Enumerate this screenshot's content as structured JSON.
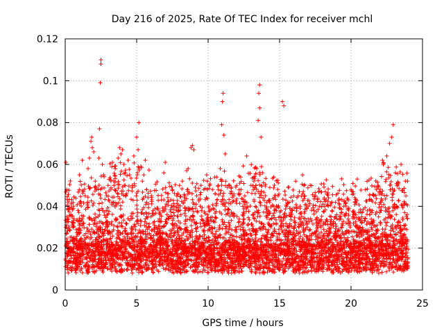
{
  "chart_data": {
    "type": "scatter",
    "title": "Day 216 of 2025, Rate Of TEC Index for receiver mchl",
    "xlabel": "GPS time / hours",
    "ylabel": "ROTI / TECUs",
    "xlim": [
      0,
      25
    ],
    "ylim": [
      0,
      0.12
    ],
    "xticks": [
      0,
      5,
      10,
      15,
      20,
      25
    ],
    "xtick_labels": [
      "0",
      "5",
      "10",
      "15",
      "20",
      "25"
    ],
    "yticks": [
      0,
      0.02,
      0.04,
      0.06,
      0.08,
      0.1,
      0.12
    ],
    "ytick_labels": [
      "0",
      "0.02",
      "0.04",
      "0.06",
      "0.08",
      "0.1",
      "0.12"
    ],
    "grid": true,
    "marker": "plus",
    "color": "#ff0000",
    "series": [
      {
        "name": "ROTI",
        "note": "Dense cloud of several thousand samples between 0.005 and 0.03 TECU/s across 0-24 h; listed points are the visible outliers/peaks",
        "points": [
          [
            0.05,
            0.061
          ],
          [
            0.1,
            0.048
          ],
          [
            0.2,
            0.042
          ],
          [
            0.4,
            0.036
          ],
          [
            0.6,
            0.034
          ],
          [
            0.9,
            0.038
          ],
          [
            1.0,
            0.055
          ],
          [
            1.2,
            0.062
          ],
          [
            1.4,
            0.045
          ],
          [
            1.6,
            0.058
          ],
          [
            1.7,
            0.063
          ],
          [
            1.8,
            0.071
          ],
          [
            1.85,
            0.073
          ],
          [
            1.9,
            0.068
          ],
          [
            2.0,
            0.066
          ],
          [
            2.1,
            0.052
          ],
          [
            2.2,
            0.048
          ],
          [
            2.35,
            0.063
          ],
          [
            2.4,
            0.077
          ],
          [
            2.45,
            0.099
          ],
          [
            2.5,
            0.108
          ],
          [
            2.5,
            0.11
          ],
          [
            2.6,
            0.06
          ],
          [
            2.7,
            0.055
          ],
          [
            2.9,
            0.045
          ],
          [
            3.0,
            0.05
          ],
          [
            3.2,
            0.052
          ],
          [
            3.3,
            0.061
          ],
          [
            3.5,
            0.058
          ],
          [
            3.7,
            0.063
          ],
          [
            3.8,
            0.068
          ],
          [
            3.9,
            0.065
          ],
          [
            4.0,
            0.067
          ],
          [
            4.1,
            0.06
          ],
          [
            4.2,
            0.056
          ],
          [
            4.4,
            0.062
          ],
          [
            4.5,
            0.055
          ],
          [
            4.7,
            0.05
          ],
          [
            4.8,
            0.064
          ],
          [
            5.0,
            0.073
          ],
          [
            5.1,
            0.067
          ],
          [
            5.15,
            0.08
          ],
          [
            5.3,
            0.059
          ],
          [
            5.4,
            0.052
          ],
          [
            5.5,
            0.055
          ],
          [
            5.6,
            0.062
          ],
          [
            5.7,
            0.048
          ],
          [
            6.0,
            0.035
          ],
          [
            6.3,
            0.03
          ],
          [
            6.6,
            0.034
          ],
          [
            6.9,
            0.056
          ],
          [
            7.0,
            0.061
          ],
          [
            7.2,
            0.046
          ],
          [
            7.5,
            0.048
          ],
          [
            7.8,
            0.045
          ],
          [
            8.0,
            0.05
          ],
          [
            8.2,
            0.052
          ],
          [
            8.5,
            0.057
          ],
          [
            8.6,
            0.058
          ],
          [
            8.8,
            0.068
          ],
          [
            8.9,
            0.069
          ],
          [
            9.0,
            0.067
          ],
          [
            9.2,
            0.045
          ],
          [
            9.5,
            0.05
          ],
          [
            9.7,
            0.048
          ],
          [
            9.9,
            0.055
          ],
          [
            10.1,
            0.05
          ],
          [
            10.3,
            0.048
          ],
          [
            10.5,
            0.046
          ],
          [
            10.7,
            0.05
          ],
          [
            10.85,
            0.058
          ],
          [
            10.95,
            0.079
          ],
          [
            11.0,
            0.09
          ],
          [
            11.05,
            0.094
          ],
          [
            11.1,
            0.074
          ],
          [
            11.2,
            0.065
          ],
          [
            11.5,
            0.05
          ],
          [
            11.8,
            0.045
          ],
          [
            12.0,
            0.05
          ],
          [
            12.3,
            0.048
          ],
          [
            12.7,
            0.064
          ],
          [
            13.0,
            0.05
          ],
          [
            13.2,
            0.052
          ],
          [
            13.4,
            0.058
          ],
          [
            13.5,
            0.081
          ],
          [
            13.55,
            0.094
          ],
          [
            13.6,
            0.098
          ],
          [
            13.6,
            0.087
          ],
          [
            13.7,
            0.073
          ],
          [
            13.8,
            0.056
          ],
          [
            14.0,
            0.045
          ],
          [
            14.3,
            0.042
          ],
          [
            14.6,
            0.04
          ],
          [
            14.9,
            0.045
          ],
          [
            15.2,
            0.09
          ],
          [
            15.3,
            0.088
          ],
          [
            15.5,
            0.04
          ],
          [
            15.9,
            0.038
          ],
          [
            16.3,
            0.045
          ],
          [
            16.6,
            0.055
          ],
          [
            16.7,
            0.05
          ],
          [
            17.0,
            0.04
          ],
          [
            17.4,
            0.038
          ],
          [
            17.8,
            0.04
          ],
          [
            18.2,
            0.047
          ],
          [
            18.6,
            0.035
          ],
          [
            19.0,
            0.036
          ],
          [
            19.5,
            0.04
          ],
          [
            19.8,
            0.043
          ],
          [
            20.2,
            0.036
          ],
          [
            20.6,
            0.03
          ],
          [
            21.0,
            0.034
          ],
          [
            21.3,
            0.036
          ],
          [
            21.6,
            0.045
          ],
          [
            21.9,
            0.05
          ],
          [
            22.2,
            0.062
          ],
          [
            22.5,
            0.064
          ],
          [
            22.7,
            0.07
          ],
          [
            22.85,
            0.073
          ],
          [
            22.95,
            0.079
          ],
          [
            23.1,
            0.056
          ],
          [
            23.3,
            0.051
          ],
          [
            23.5,
            0.06
          ],
          [
            23.8,
            0.052
          ],
          [
            23.95,
            0.052
          ]
        ]
      }
    ]
  }
}
